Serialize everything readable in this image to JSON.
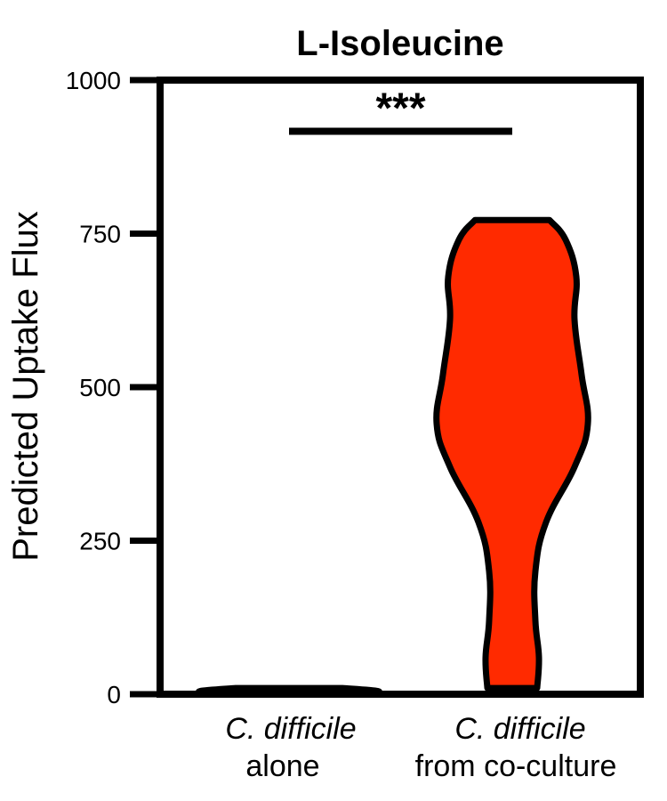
{
  "chart_data": {
    "type": "violin",
    "title": "L-Isoleucine",
    "ylabel": "Predicted Uptake Flux",
    "xlabel": "",
    "ylim": [
      0,
      1000
    ],
    "yticks": [
      0,
      250,
      500,
      750,
      1000
    ],
    "grid": false,
    "categories": [
      {
        "species": "C. difficile",
        "condition": "alone"
      },
      {
        "species": "C. difficile",
        "condition": "from co-culture"
      }
    ],
    "violins": [
      {
        "category_index": 0,
        "fill": "#000000",
        "profile": [
          {
            "y": 0,
            "w": 0.9
          },
          {
            "y": 5,
            "w": 1.0
          },
          {
            "y": 10,
            "w": 0.6
          }
        ]
      },
      {
        "category_index": 1,
        "fill": "#ff2a00",
        "profile": [
          {
            "y": 10,
            "w": 0.28
          },
          {
            "y": 60,
            "w": 0.3
          },
          {
            "y": 120,
            "w": 0.26
          },
          {
            "y": 200,
            "w": 0.26
          },
          {
            "y": 280,
            "w": 0.38
          },
          {
            "y": 370,
            "w": 0.7
          },
          {
            "y": 440,
            "w": 0.85
          },
          {
            "y": 520,
            "w": 0.78
          },
          {
            "y": 610,
            "w": 0.7
          },
          {
            "y": 680,
            "w": 0.72
          },
          {
            "y": 740,
            "w": 0.6
          },
          {
            "y": 772,
            "w": 0.42
          }
        ]
      }
    ],
    "significance": {
      "label": "***",
      "from": 0,
      "to": 1,
      "y": 850
    }
  }
}
